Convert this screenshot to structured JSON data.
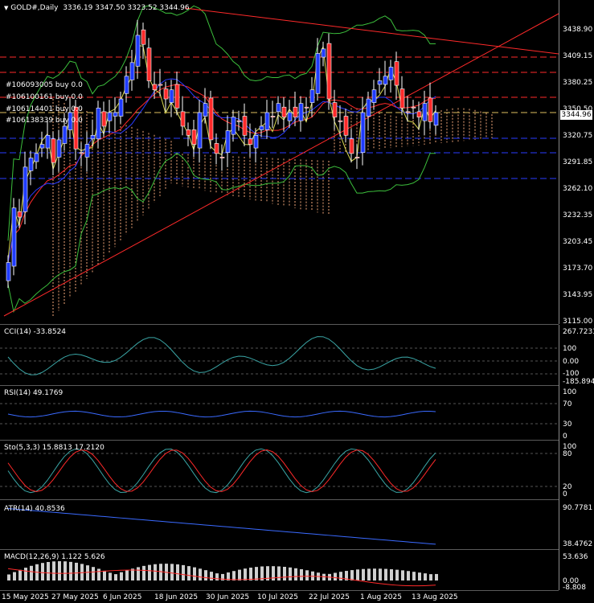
{
  "header": {
    "symbol": "GOLD#,Daily",
    "ohlc": "3336.19 3347.50 3323.52 3344.96"
  },
  "current_price": "3344.96",
  "orders": [
    "#106093005 buy 0.0",
    "#106100161 buy 0.0",
    "#106114401 buy 0.0",
    "#106138339 buy 0.0"
  ],
  "price_ticks": [
    "3438.90",
    "3409.15",
    "3380.25",
    "3350.50",
    "3320.75",
    "3291.85",
    "3262.10",
    "3232.35",
    "3203.45",
    "3173.70",
    "3143.95",
    "3115.00"
  ],
  "indicators": {
    "cci": {
      "label": "CCI(14) -33.8524",
      "ticks": [
        "267.7233",
        "100",
        "0.00",
        "-100",
        "-185.8945"
      ]
    },
    "rsi": {
      "label": "RSI(14) 49.1769",
      "ticks": [
        "100",
        "70",
        "30",
        "0"
      ]
    },
    "sto": {
      "label": "Sto(5,3,3) 15.8813 17.2120",
      "ticks": [
        "100",
        "80",
        "20",
        "0"
      ]
    },
    "atr": {
      "label": "ATR(14) 40.8536",
      "ticks": [
        "90.7781",
        "38.4762"
      ]
    },
    "macd": {
      "label": "MACD(12,26,9) 1.122 5.626",
      "ticks": [
        "53.636",
        "0.00",
        "-8.808"
      ]
    }
  },
  "x_labels": [
    "15 May 2025",
    "27 May 2025",
    "6 Jun 2025",
    "18 Jun 2025",
    "30 Jun 2025",
    "10 Jul 2025",
    "22 Jul 2025",
    "1 Aug 2025",
    "13 Aug 2025"
  ],
  "colors": {
    "bull": "#1f3bff",
    "bear": "#ff2a2a",
    "cloud": "#f5a97a",
    "grid": "#555555"
  },
  "chart_data": {
    "type": "candlestick",
    "title": "GOLD#,Daily",
    "closes": [
      3180,
      3240,
      3230,
      3285,
      3295,
      3300,
      3310,
      3320,
      3290,
      3315,
      3330,
      3345,
      3305,
      3300,
      3310,
      3320,
      3350,
      3330,
      3345,
      3345,
      3360,
      3385,
      3400,
      3430,
      3420,
      3380,
      3370,
      3375,
      3360,
      3370,
      3350,
      3330,
      3320,
      3310,
      3345,
      3355,
      3315,
      3300,
      3295,
      3325,
      3340,
      3335,
      3320,
      3310,
      3320,
      3330,
      3345,
      3340,
      3355,
      3340,
      3345,
      3340,
      3355,
      3350,
      3370,
      3410,
      3415,
      3360,
      3340,
      3335,
      3320,
      3300,
      3295,
      3345,
      3360,
      3370,
      3380,
      3385,
      3395,
      3375,
      3350,
      3345,
      3350,
      3340,
      3355,
      3335,
      3345
    ],
    "ylim": [
      3115,
      3460
    ]
  }
}
